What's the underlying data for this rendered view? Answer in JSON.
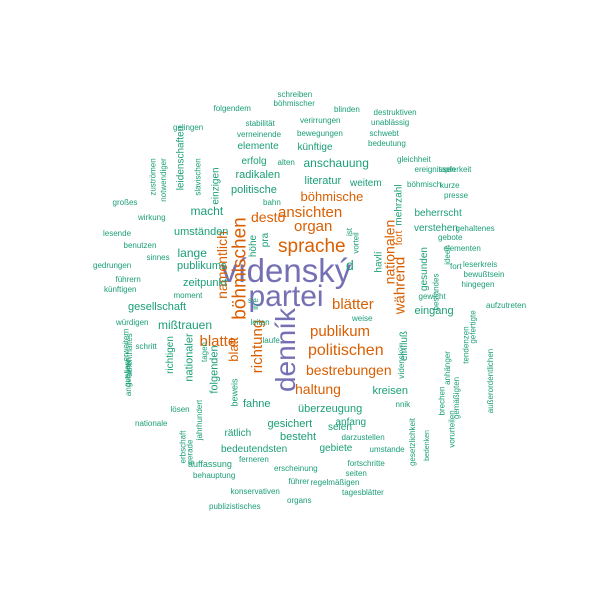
{
  "palette": {
    "purple": "#7570b3",
    "orange": "#d95f02",
    "teal": "#1b9e77"
  },
  "words": [
    {
      "text": "vídenský",
      "color": "purple"
    },
    {
      "text": "partei",
      "color": "purple"
    },
    {
      "text": "denník",
      "color": "purple"
    },
    {
      "text": "böhmischen",
      "color": "orange"
    },
    {
      "text": "sprache",
      "color": "orange"
    },
    {
      "text": "ansichten",
      "color": "orange"
    },
    {
      "text": "organ",
      "color": "orange"
    },
    {
      "text": "böhmische",
      "color": "orange"
    },
    {
      "text": "desto",
      "color": "orange"
    },
    {
      "text": "namentlich",
      "color": "orange"
    },
    {
      "text": "nationalen",
      "color": "orange"
    },
    {
      "text": "während",
      "color": "orange"
    },
    {
      "text": "fort",
      "color": "orange"
    },
    {
      "text": "blätter",
      "color": "orange"
    },
    {
      "text": "publikum",
      "color": "orange"
    },
    {
      "text": "blatte",
      "color": "orange"
    },
    {
      "text": "blatt",
      "color": "orange"
    },
    {
      "text": "politischen",
      "color": "orange"
    },
    {
      "text": "richtung",
      "color": "orange"
    },
    {
      "text": "bestrebungen",
      "color": "orange"
    },
    {
      "text": "haltung",
      "color": "orange"
    },
    {
      "text": "schreiben",
      "color": "teal"
    },
    {
      "text": "böhmischer",
      "color": "teal"
    },
    {
      "text": "blinden",
      "color": "teal"
    },
    {
      "text": "folgendem",
      "color": "teal"
    },
    {
      "text": "destruktiven",
      "color": "teal"
    },
    {
      "text": "stabilität",
      "color": "teal"
    },
    {
      "text": "verirrungen",
      "color": "teal"
    },
    {
      "text": "unablässig",
      "color": "teal"
    },
    {
      "text": "gelingen",
      "color": "teal"
    },
    {
      "text": "verneinende",
      "color": "teal"
    },
    {
      "text": "bewegungen",
      "color": "teal"
    },
    {
      "text": "schwebt",
      "color": "teal"
    },
    {
      "text": "bedeutung",
      "color": "teal"
    },
    {
      "text": "elemente",
      "color": "teal"
    },
    {
      "text": "künftige",
      "color": "teal"
    },
    {
      "text": "gleichheit",
      "color": "teal"
    },
    {
      "text": "erfolg",
      "color": "teal"
    },
    {
      "text": "alten",
      "color": "teal"
    },
    {
      "text": "anschauung",
      "color": "teal"
    },
    {
      "text": "ereignissen",
      "color": "teal"
    },
    {
      "text": "tapferkeit",
      "color": "teal"
    },
    {
      "text": "zuströmen",
      "color": "teal"
    },
    {
      "text": "notwendiger",
      "color": "teal"
    },
    {
      "text": "leidenschaften",
      "color": "teal"
    },
    {
      "text": "slavischen",
      "color": "teal"
    },
    {
      "text": "einzigen",
      "color": "teal"
    },
    {
      "text": "radikalen",
      "color": "teal"
    },
    {
      "text": "literatur",
      "color": "teal"
    },
    {
      "text": "weitem",
      "color": "teal"
    },
    {
      "text": "böhmisch",
      "color": "teal"
    },
    {
      "text": "kurze",
      "color": "teal"
    },
    {
      "text": "presse",
      "color": "teal"
    },
    {
      "text": "großes",
      "color": "teal"
    },
    {
      "text": "politische",
      "color": "teal"
    },
    {
      "text": "bahn",
      "color": "teal"
    },
    {
      "text": "mehrzahl",
      "color": "teal"
    },
    {
      "text": "wirkung",
      "color": "teal"
    },
    {
      "text": "macht",
      "color": "teal"
    },
    {
      "text": "beherrscht",
      "color": "teal"
    },
    {
      "text": "gehaltenes",
      "color": "teal"
    },
    {
      "text": "lesende",
      "color": "teal"
    },
    {
      "text": "umständen",
      "color": "teal"
    },
    {
      "text": "höhe",
      "color": "teal"
    },
    {
      "text": "pra",
      "color": "teal"
    },
    {
      "text": "ist",
      "color": "teal"
    },
    {
      "text": "vorteil",
      "color": "teal"
    },
    {
      "text": "verstehen",
      "color": "teal"
    },
    {
      "text": "gebote",
      "color": "teal"
    },
    {
      "text": "benutzen",
      "color": "teal"
    },
    {
      "text": "lange",
      "color": "teal"
    },
    {
      "text": "d",
      "color": "teal"
    },
    {
      "text": "havlí",
      "color": "teal"
    },
    {
      "text": "ideen",
      "color": "teal"
    },
    {
      "text": "elementen",
      "color": "teal"
    },
    {
      "text": "sinnes",
      "color": "teal"
    },
    {
      "text": "gedrungen",
      "color": "teal"
    },
    {
      "text": "publikums",
      "color": "teal"
    },
    {
      "text": "fort",
      "color": "teal"
    },
    {
      "text": "leserkreis",
      "color": "teal"
    },
    {
      "text": "führern",
      "color": "teal"
    },
    {
      "text": "zeitpunkt",
      "color": "teal"
    },
    {
      "text": "künftigen",
      "color": "teal"
    },
    {
      "text": "gesunden",
      "color": "teal"
    },
    {
      "text": "bewußtsein",
      "color": "teal"
    },
    {
      "text": "hingegen",
      "color": "teal"
    },
    {
      "text": "moment",
      "color": "teal"
    },
    {
      "text": "gewicht",
      "color": "teal"
    },
    {
      "text": "gesellschaft",
      "color": "teal"
    },
    {
      "text": "s",
      "color": "teal"
    },
    {
      "text": "irre",
      "color": "teal"
    },
    {
      "text": "eingang",
      "color": "teal"
    },
    {
      "text": "aufzutreten",
      "color": "teal"
    },
    {
      "text": "bestandes",
      "color": "teal"
    },
    {
      "text": "gefertigte",
      "color": "teal"
    },
    {
      "text": "würdigen",
      "color": "teal"
    },
    {
      "text": "mißtrauen",
      "color": "teal"
    },
    {
      "text": "leiten",
      "color": "teal"
    },
    {
      "text": "weise",
      "color": "teal"
    },
    {
      "text": "erweitern",
      "color": "teal"
    },
    {
      "text": "aufenthaltes",
      "color": "teal"
    },
    {
      "text": "schritt",
      "color": "teal"
    },
    {
      "text": "nationaler",
      "color": "teal"
    },
    {
      "text": "laufe",
      "color": "teal"
    },
    {
      "text": "tendenzen",
      "color": "teal"
    },
    {
      "text": "quellen",
      "color": "teal"
    },
    {
      "text": "angehören",
      "color": "teal"
    },
    {
      "text": "richtigen",
      "color": "teal"
    },
    {
      "text": "tagen",
      "color": "teal"
    },
    {
      "text": "folgenden",
      "color": "teal"
    },
    {
      "text": "vídenský",
      "color": "teal"
    },
    {
      "text": "einfluß",
      "color": "teal"
    },
    {
      "text": "anhänger",
      "color": "teal"
    },
    {
      "text": "kreisen",
      "color": "teal"
    },
    {
      "text": "gemäßigten",
      "color": "teal"
    },
    {
      "text": "außerordentlichen",
      "color": "teal"
    },
    {
      "text": "lösen",
      "color": "teal"
    },
    {
      "text": "beweis",
      "color": "teal"
    },
    {
      "text": "fahne",
      "color": "teal"
    },
    {
      "text": "überzeugung",
      "color": "teal"
    },
    {
      "text": "nnik",
      "color": "teal"
    },
    {
      "text": "brechen",
      "color": "teal"
    },
    {
      "text": "nationale",
      "color": "teal"
    },
    {
      "text": "jahrhundert",
      "color": "teal"
    },
    {
      "text": "gesichert",
      "color": "teal"
    },
    {
      "text": "seien",
      "color": "teal"
    },
    {
      "text": "anfang",
      "color": "teal"
    },
    {
      "text": "vorurteilen",
      "color": "teal"
    },
    {
      "text": "erbschaft",
      "color": "teal"
    },
    {
      "text": "gerade",
      "color": "teal"
    },
    {
      "text": "rätlich",
      "color": "teal"
    },
    {
      "text": "besteht",
      "color": "teal"
    },
    {
      "text": "darzustellen",
      "color": "teal"
    },
    {
      "text": "umstande",
      "color": "teal"
    },
    {
      "text": "gesetzlichkeit",
      "color": "teal"
    },
    {
      "text": "bedeutendsten",
      "color": "teal"
    },
    {
      "text": "gebiete",
      "color": "teal"
    },
    {
      "text": "bedenken",
      "color": "teal"
    },
    {
      "text": "auffassung",
      "color": "teal"
    },
    {
      "text": "ferneren",
      "color": "teal"
    },
    {
      "text": "fortschritte",
      "color": "teal"
    },
    {
      "text": "behauptung",
      "color": "teal"
    },
    {
      "text": "erscheinung",
      "color": "teal"
    },
    {
      "text": "seiten",
      "color": "teal"
    },
    {
      "text": "führer",
      "color": "teal"
    },
    {
      "text": "regelmäßigen",
      "color": "teal"
    },
    {
      "text": "konservativen",
      "color": "teal"
    },
    {
      "text": "tagesblätter",
      "color": "teal"
    },
    {
      "text": "organs",
      "color": "teal"
    },
    {
      "text": "publizistisches",
      "color": "teal"
    }
  ]
}
